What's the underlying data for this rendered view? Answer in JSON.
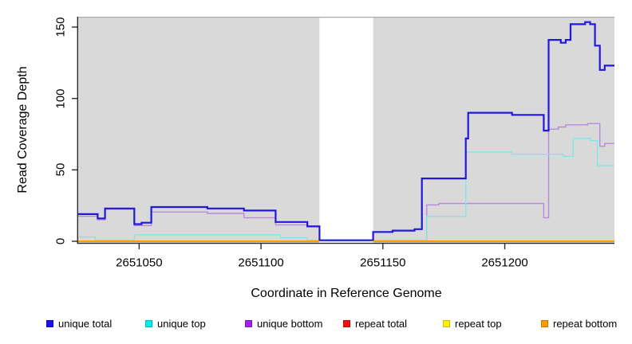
{
  "figure": {
    "background": "#ffffff",
    "axis_color": "#2b2b2b",
    "text_color": "#000000"
  },
  "chart_data": {
    "type": "line",
    "subtype": "step-coverage",
    "title": "",
    "xlabel": "Coordinate in Reference Genome",
    "ylabel": "Read Coverage Depth",
    "xlim": [
      2651025,
      2651245
    ],
    "ylim": [
      0,
      157
    ],
    "x_ticks": [
      2651050,
      2651100,
      2651150,
      2651200
    ],
    "y_ticks": [
      0,
      50,
      100,
      150
    ],
    "grid": false,
    "plot_bg": "#d9d9d9",
    "plot_top_border": "#ababab",
    "gap_region": {
      "x_start": 2651124,
      "x_end": 2651146,
      "color": "#ffffff"
    },
    "legend_position": "bottom",
    "series": [
      {
        "name": "unique total",
        "line_color": "#2417dd",
        "legend_color": "#1a10ee",
        "line_width": 2.2,
        "segments": [
          [
            [
              2651025,
              19
            ],
            [
              2651033,
              16
            ],
            [
              2651036,
              23
            ],
            [
              2651048,
              12
            ],
            [
              2651051,
              13
            ],
            [
              2651055,
              24
            ],
            [
              2651078,
              23
            ],
            [
              2651093,
              21.5
            ],
            [
              2651106,
              13.5
            ],
            [
              2651119,
              10.5
            ],
            [
              2651124,
              0.7
            ],
            [
              2651146,
              6.5
            ],
            [
              2651154,
              7.5
            ],
            [
              2651163,
              8.5
            ],
            [
              2651166,
              44
            ],
            [
              2651184,
              72
            ],
            [
              2651185,
              90
            ],
            [
              2651203,
              88.5
            ],
            [
              2651216,
              77.5
            ],
            [
              2651218,
              141
            ],
            [
              2651223,
              139
            ],
            [
              2651225,
              141
            ],
            [
              2651227,
              152
            ],
            [
              2651233,
              153.5
            ],
            [
              2651235,
              152
            ],
            [
              2651237,
              137
            ],
            [
              2651239,
              120
            ],
            [
              2651241,
              123
            ],
            [
              2651245,
              123
            ]
          ]
        ]
      },
      {
        "name": "unique top",
        "line_color": "#79e8e6",
        "legend_color": "#00eeee",
        "line_width": 1.3,
        "segments": [
          [
            [
              2651025,
              3
            ],
            [
              2651032,
              0.8
            ],
            [
              2651048,
              4.6
            ],
            [
              2651108,
              2.5
            ],
            [
              2651119,
              0.8
            ],
            [
              2651124,
              0.2
            ],
            [
              2651146,
              0.8
            ],
            [
              2651168,
              17.5
            ],
            [
              2651184,
              62.5
            ],
            [
              2651203,
              61
            ],
            [
              2651224,
              59.5
            ],
            [
              2651228,
              72
            ],
            [
              2651235,
              70.5
            ],
            [
              2651238,
              53
            ],
            [
              2651245,
              53
            ]
          ]
        ]
      },
      {
        "name": "unique bottom",
        "line_color": "#b78ae0",
        "legend_color": "#a121f0",
        "line_width": 1.4,
        "segments": [
          [
            [
              2651025,
              17.5
            ],
            [
              2651033,
              15
            ],
            [
              2651036,
              22.5
            ],
            [
              2651048,
              11
            ],
            [
              2651055,
              20.5
            ],
            [
              2651078,
              19.5
            ],
            [
              2651093,
              16.5
            ],
            [
              2651106,
              11.5
            ],
            [
              2651119,
              10
            ],
            [
              2651124,
              0.4
            ],
            [
              2651168,
              25.5
            ],
            [
              2651173,
              26.5
            ],
            [
              2651216,
              16.5
            ],
            [
              2651218,
              78.5
            ],
            [
              2651222,
              80
            ],
            [
              2651225,
              81.5
            ],
            [
              2651234,
              82.5
            ],
            [
              2651239,
              66.5
            ],
            [
              2651241,
              68.5
            ],
            [
              2651245,
              68.5
            ]
          ]
        ]
      },
      {
        "name": "repeat total",
        "line_color": "#dd0000",
        "legend_color": "#ee1111",
        "line_width": 1.3,
        "segments": [
          [
            [
              2651025,
              0
            ],
            [
              2651124,
              0
            ]
          ],
          [
            [
              2651146,
              0
            ],
            [
              2651245,
              0
            ]
          ]
        ]
      },
      {
        "name": "repeat top",
        "line_color": "#ffff00",
        "legend_color": "#fff200",
        "line_width": 1.3,
        "segments": [
          [
            [
              2651025,
              0
            ],
            [
              2651124,
              0
            ]
          ],
          [
            [
              2651146,
              0
            ],
            [
              2651245,
              0
            ]
          ]
        ]
      },
      {
        "name": "repeat bottom",
        "line_color": "#ff9d00",
        "legend_color": "#f79d00",
        "line_width": 1.9,
        "segments": [
          [
            [
              2651025,
              0
            ],
            [
              2651124,
              0
            ]
          ],
          [
            [
              2651146,
              0
            ],
            [
              2651245,
              0
            ]
          ]
        ]
      }
    ],
    "legend": [
      {
        "label": "unique total"
      },
      {
        "label": "unique top"
      },
      {
        "label": "unique bottom"
      },
      {
        "label": "repeat total"
      },
      {
        "label": "repeat top"
      },
      {
        "label": "repeat bottom"
      }
    ]
  }
}
